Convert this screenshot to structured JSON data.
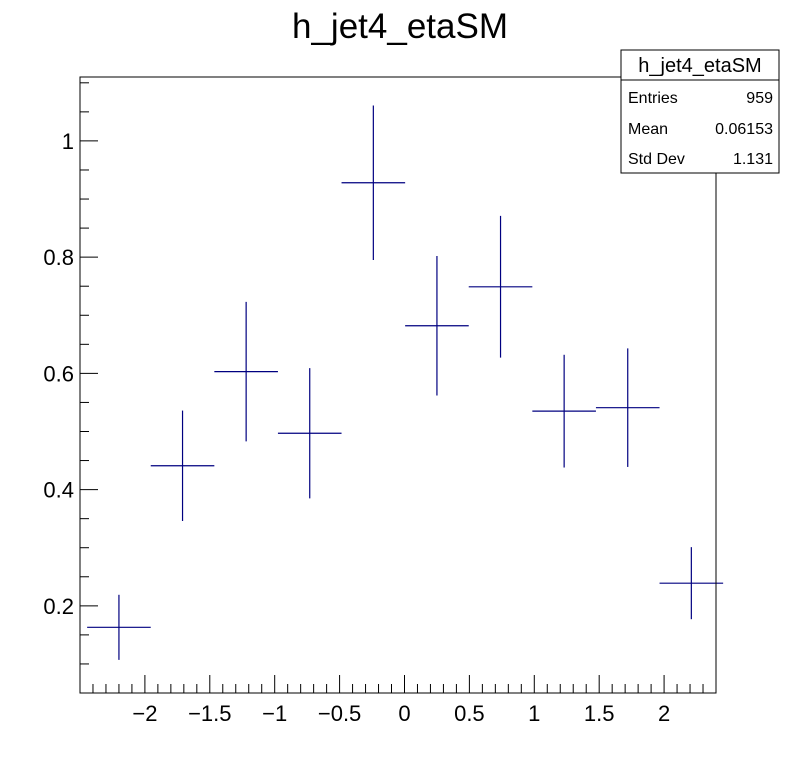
{
  "chart_data": {
    "type": "scatter",
    "title": "h_jet4_etaSM",
    "xlabel": "",
    "ylabel": "",
    "xlim": [
      -2.5,
      2.4
    ],
    "ylim": [
      0.05,
      1.11
    ],
    "x_ticks": [
      -2,
      -1.5,
      -1,
      -0.5,
      0,
      0.5,
      1,
      1.5,
      2
    ],
    "x_tick_labels": [
      "−2",
      "−1.5",
      "−1",
      "−0.5",
      "0",
      "0.5",
      "1",
      "1.5",
      "2"
    ],
    "y_ticks": [
      0.2,
      0.4,
      0.6,
      0.8,
      1
    ],
    "y_tick_labels": [
      "0.2",
      "0.4",
      "0.6",
      "0.8",
      "1"
    ],
    "grid": false,
    "series": [
      {
        "color": "#000080",
        "points": [
          {
            "x": -2.2,
            "xerr": 0.245,
            "y": 0.163,
            "yerr": 0.056
          },
          {
            "x": -1.71,
            "xerr": 0.245,
            "y": 0.441,
            "yerr": 0.095
          },
          {
            "x": -1.22,
            "xerr": 0.245,
            "y": 0.603,
            "yerr": 0.12
          },
          {
            "x": -0.73,
            "xerr": 0.245,
            "y": 0.497,
            "yerr": 0.112
          },
          {
            "x": -0.24,
            "xerr": 0.245,
            "y": 0.928,
            "yerr": 0.133
          },
          {
            "x": 0.25,
            "xerr": 0.245,
            "y": 0.682,
            "yerr": 0.12
          },
          {
            "x": 0.74,
            "xerr": 0.245,
            "y": 0.749,
            "yerr": 0.122
          },
          {
            "x": 1.23,
            "xerr": 0.245,
            "y": 0.535,
            "yerr": 0.097
          },
          {
            "x": 1.72,
            "xerr": 0.245,
            "y": 0.541,
            "yerr": 0.102
          },
          {
            "x": 2.21,
            "xerr": 0.245,
            "y": 0.239,
            "yerr": 0.062
          }
        ]
      }
    ],
    "stats_box": {
      "title": "h_jet4_etaSM",
      "rows": [
        {
          "label": "Entries",
          "value": "959"
        },
        {
          "label": "Mean",
          "value": "0.06153"
        },
        {
          "label": "Std Dev",
          "value": "1.131"
        }
      ],
      "placement": "top-right"
    }
  }
}
